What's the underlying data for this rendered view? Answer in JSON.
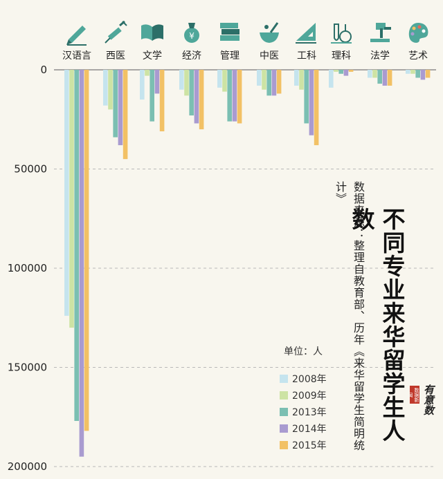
{
  "chart_data": {
    "type": "bar",
    "title": "不同专业来华留学生人数",
    "source": "数据来源：整理自教育部、历年《来华留学生简明统计》",
    "unit": "单位：人",
    "categories": [
      "汉语言",
      "西医",
      "文学",
      "经济",
      "管理",
      "中医",
      "工科",
      "理科",
      "法学",
      "艺术"
    ],
    "category_icons": [
      "pen-icon",
      "syringe-icon",
      "book-icon",
      "money-bag-icon",
      "book-stack-icon",
      "mortar-icon",
      "ruler-triangle-icon",
      "flask-icon",
      "gavel-icon",
      "palette-icon"
    ],
    "series": [
      {
        "name": "2008年",
        "color": "#c5e4ee",
        "values": [
          124000,
          18000,
          15000,
          10000,
          9000,
          8000,
          8000,
          9000,
          4000,
          2000
        ]
      },
      {
        "name": "2009年",
        "color": "#cde3a4",
        "values": [
          130000,
          20000,
          3000,
          13000,
          11000,
          10000,
          10000,
          1000,
          4000,
          2000
        ]
      },
      {
        "name": "2013年",
        "color": "#7bbfb2",
        "values": [
          177000,
          34000,
          26000,
          23000,
          26000,
          13000,
          27000,
          2000,
          7000,
          4000
        ]
      },
      {
        "name": "2014年",
        "color": "#a99bd0",
        "values": [
          195000,
          38000,
          12000,
          27000,
          26000,
          13000,
          33000,
          3000,
          8000,
          5000
        ]
      },
      {
        "name": "2015年",
        "color": "#f2c165",
        "values": [
          182000,
          45000,
          31000,
          30000,
          27000,
          12000,
          38000,
          1000,
          8000,
          4000
        ]
      }
    ],
    "ylim": [
      0,
      200000
    ],
    "yticks": [
      0,
      50000,
      100000,
      150000,
      200000
    ],
    "ytick_labels": [
      "0",
      "50000",
      "100000",
      "150000",
      "200000"
    ],
    "axis_inverted": true,
    "grid": true,
    "legend_position": "bottom-right"
  },
  "brand": {
    "badge": "数据新闻",
    "sign": "有意数"
  }
}
